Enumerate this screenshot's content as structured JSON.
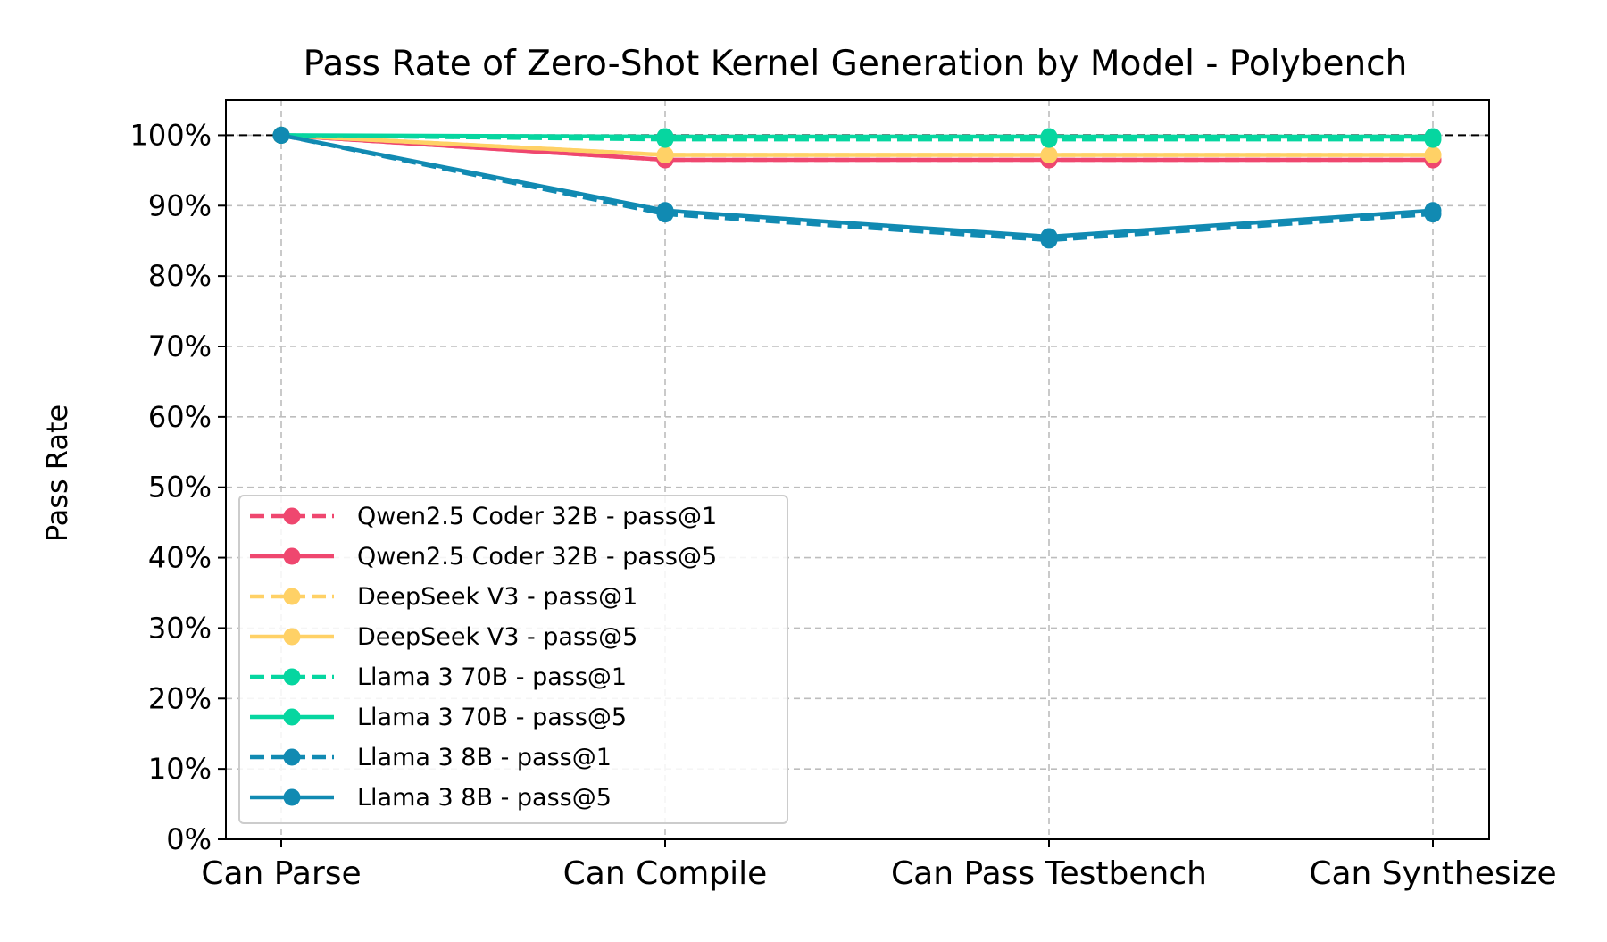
{
  "chart_data": {
    "type": "line",
    "title": "Pass Rate of Zero-Shot Kernel Generation by Model - Polybench",
    "xlabel": "",
    "ylabel": "Pass Rate",
    "categories": [
      "Can Parse",
      "Can Compile",
      "Can Pass Testbench",
      "Can Synthesize"
    ],
    "yticks": [
      "0%",
      "10%",
      "20%",
      "30%",
      "40%",
      "50%",
      "60%",
      "70%",
      "80%",
      "90%",
      "100%"
    ],
    "ylim": [
      0,
      105
    ],
    "reference_line": 100,
    "grid": true,
    "legend_position": "lower-left",
    "series": [
      {
        "name": "Qwen2.5 Coder 32B - pass@1",
        "color": "#EF476F",
        "dashed": true,
        "values": [
          100,
          96.5,
          96.5,
          96.5
        ]
      },
      {
        "name": "Qwen2.5 Coder 32B - pass@5",
        "color": "#EF476F",
        "dashed": false,
        "values": [
          100,
          96.5,
          96.5,
          96.5
        ]
      },
      {
        "name": "DeepSeek V3 - pass@1",
        "color": "#FFD166",
        "dashed": true,
        "values": [
          100,
          97.2,
          97.2,
          97.2
        ]
      },
      {
        "name": "DeepSeek V3 - pass@5",
        "color": "#FFD166",
        "dashed": false,
        "values": [
          100,
          97.2,
          97.2,
          97.2
        ]
      },
      {
        "name": "Llama 3 70B - pass@1",
        "color": "#06D6A0",
        "dashed": true,
        "values": [
          100,
          99.4,
          99.4,
          99.4
        ]
      },
      {
        "name": "Llama 3 70B - pass@5",
        "color": "#06D6A0",
        "dashed": false,
        "values": [
          100,
          99.8,
          99.8,
          99.8
        ]
      },
      {
        "name": "Llama 3 8B - pass@1",
        "color": "#118AB2",
        "dashed": true,
        "values": [
          100,
          88.8,
          85.1,
          88.8
        ]
      },
      {
        "name": "Llama 3 8B - pass@5",
        "color": "#118AB2",
        "dashed": false,
        "values": [
          100,
          89.3,
          85.6,
          89.3
        ]
      }
    ]
  }
}
